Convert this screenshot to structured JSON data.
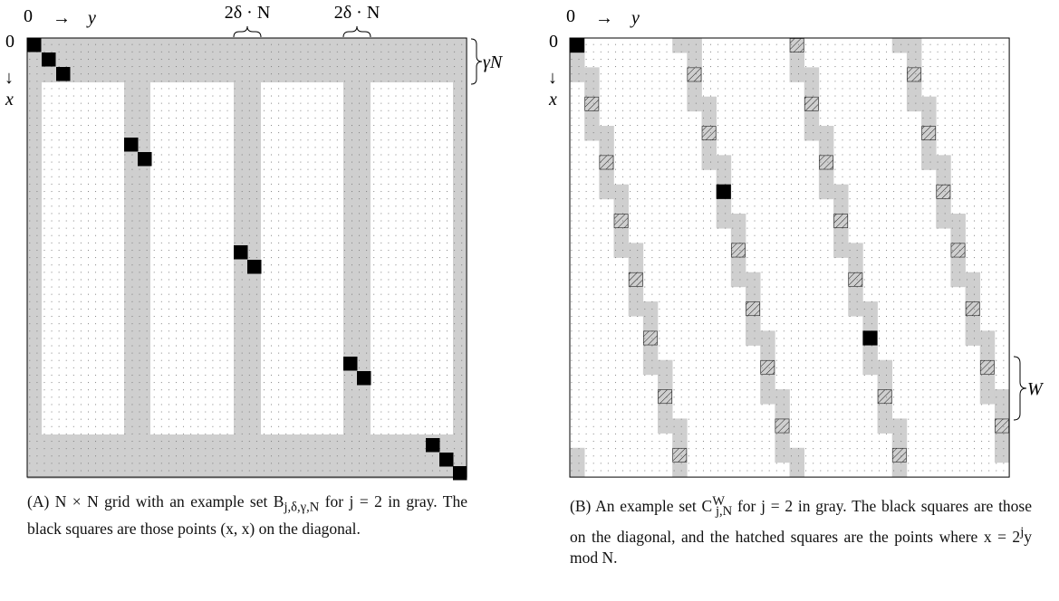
{
  "panel_a": {
    "origin_top": "0",
    "origin_left": "0",
    "y_arrow": "→",
    "y_label": "y",
    "x_arrow": "↓",
    "x_label": "x",
    "stripe_label_1": "2δ · N",
    "stripe_label_2": "2δ · N",
    "band_label": "γN",
    "caption": {
      "tag": "(A)",
      "text_1": " N × N grid with an example set B",
      "sub": "j,δ,γ,N",
      "text_2": " for j = 2 in gray. The black squares are those points (x, x) on the diagonal."
    }
  },
  "panel_b": {
    "origin_top": "0",
    "origin_left": "0",
    "y_arrow": "→",
    "y_label": "y",
    "x_arrow": "↓",
    "x_label": "x",
    "band_label": "W",
    "caption": {
      "tag": "(B)",
      "text_1": " An example set C",
      "sup": "W",
      "sub": "j,N",
      "text_2": " for j = 2 in gray. The black squares are those on the diagonal, and the hatched squares are the points where x = 2",
      "sup2": "j",
      "text_3": "y mod N."
    }
  }
}
